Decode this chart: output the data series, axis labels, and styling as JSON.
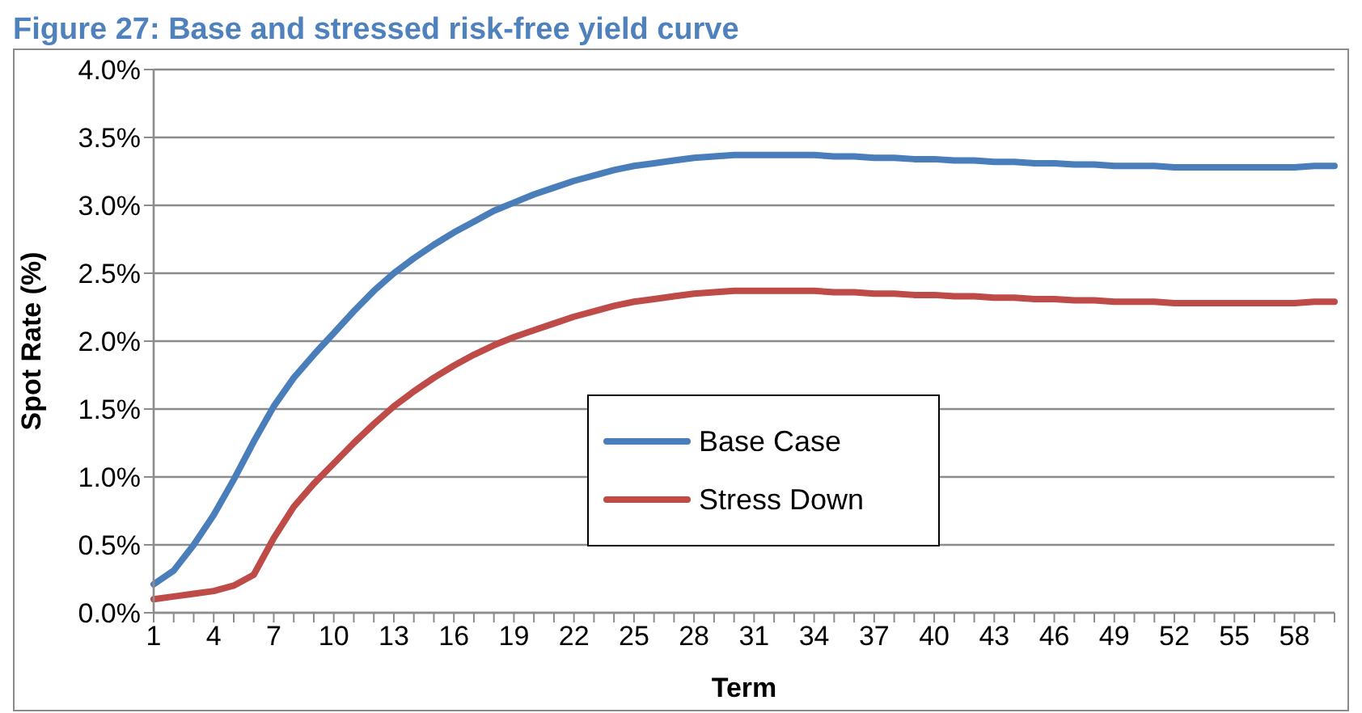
{
  "chart_data": {
    "type": "line",
    "title": "Figure 27: Base and stressed risk-free yield curve",
    "xlabel": "Term",
    "ylabel": "Spot Rate (%)",
    "categories": [
      "1",
      null,
      null,
      "4",
      null,
      null,
      "7",
      null,
      null,
      "10",
      null,
      null,
      "13",
      null,
      null,
      "16",
      null,
      null,
      "19",
      null,
      null,
      "22",
      null,
      null,
      "25",
      null,
      null,
      "28",
      null,
      null,
      "31",
      null,
      null,
      "34",
      null,
      null,
      "37",
      null,
      null,
      "40",
      null,
      null,
      "43",
      null,
      null,
      "46",
      null,
      null,
      "49",
      null,
      null,
      "52",
      null,
      null,
      "55",
      null,
      null,
      "58",
      null,
      null
    ],
    "series": [
      {
        "name": "Base Case",
        "color": "#4a7ebb",
        "values": [
          0.21,
          0.31,
          0.5,
          0.72,
          0.98,
          1.26,
          1.52,
          1.73,
          1.9,
          2.06,
          2.22,
          2.37,
          2.5,
          2.61,
          2.71,
          2.8,
          2.88,
          2.96,
          3.02,
          3.08,
          3.13,
          3.18,
          3.22,
          3.26,
          3.29,
          3.31,
          3.33,
          3.35,
          3.36,
          3.37,
          3.37,
          3.37,
          3.37,
          3.37,
          3.36,
          3.36,
          3.35,
          3.35,
          3.34,
          3.34,
          3.33,
          3.33,
          3.32,
          3.32,
          3.31,
          3.31,
          3.3,
          3.3,
          3.29,
          3.29,
          3.29,
          3.28,
          3.28,
          3.28,
          3.28,
          3.28,
          3.28,
          3.28,
          3.29,
          3.29
        ]
      },
      {
        "name": "Stress Down",
        "color": "#be4b48",
        "values": [
          0.1,
          0.12,
          0.14,
          0.16,
          0.2,
          0.28,
          0.55,
          0.78,
          0.95,
          1.1,
          1.25,
          1.39,
          1.52,
          1.63,
          1.73,
          1.82,
          1.9,
          1.97,
          2.03,
          2.08,
          2.13,
          2.18,
          2.22,
          2.26,
          2.29,
          2.31,
          2.33,
          2.35,
          2.36,
          2.37,
          2.37,
          2.37,
          2.37,
          2.37,
          2.36,
          2.36,
          2.35,
          2.35,
          2.34,
          2.34,
          2.33,
          2.33,
          2.32,
          2.32,
          2.31,
          2.31,
          2.3,
          2.3,
          2.29,
          2.29,
          2.29,
          2.28,
          2.28,
          2.28,
          2.28,
          2.28,
          2.28,
          2.28,
          2.29,
          2.29
        ]
      }
    ],
    "ylim": [
      0,
      4
    ],
    "yticks": [
      {
        "value": 0,
        "label": "0.0%"
      },
      {
        "value": 0.5,
        "label": "0.5%"
      },
      {
        "value": 1,
        "label": "1.0%"
      },
      {
        "value": 1.5,
        "label": "1.5%"
      },
      {
        "value": 2,
        "label": "2.0%"
      },
      {
        "value": 2.5,
        "label": "2.5%"
      },
      {
        "value": 3,
        "label": "3.0%"
      },
      {
        "value": 3.5,
        "label": "3.5%"
      },
      {
        "value": 4,
        "label": "4.0%"
      }
    ],
    "grid": "y",
    "legend": "center",
    "marker": "none",
    "line_style": "solid"
  }
}
